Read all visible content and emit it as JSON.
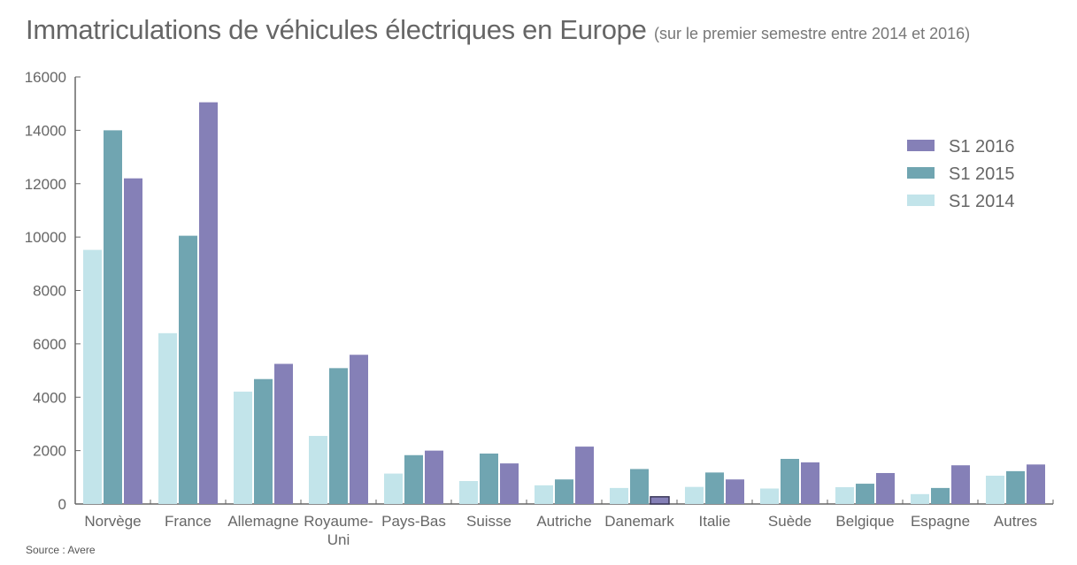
{
  "title": "Immatriculations de véhicules électriques en Europe",
  "subtitle": "(sur le premier semestre entre 2014 et 2016)",
  "source": "Source : Avere",
  "chart_data": {
    "type": "bar",
    "title": "Immatriculations de véhicules électriques en Europe",
    "subtitle": "(sur le premier semestre entre 2014 et 2016)",
    "xlabel": "",
    "ylabel": "",
    "ylim": [
      0,
      16000
    ],
    "yticks": [
      0,
      2000,
      4000,
      6000,
      8000,
      10000,
      12000,
      14000,
      16000
    ],
    "grid": false,
    "legend_position": "top-right",
    "categories": [
      "Norvège",
      "France",
      "Allemagne",
      "Royaume-Uni",
      "Pays-Bas",
      "Suisse",
      "Autriche",
      "Danemark",
      "Italie",
      "Suède",
      "Belgique",
      "Espagne",
      "Autres"
    ],
    "category_labels": [
      [
        "Norvège"
      ],
      [
        "France"
      ],
      [
        "Allemagne"
      ],
      [
        "Royaume-",
        "Uni"
      ],
      [
        "Pays-Bas"
      ],
      [
        "Suisse"
      ],
      [
        "Autriche"
      ],
      [
        "Danemark"
      ],
      [
        "Italie"
      ],
      [
        "Suède"
      ],
      [
        "Belgique"
      ],
      [
        "Espagne"
      ],
      [
        "Autres"
      ]
    ],
    "series": [
      {
        "name": "S1 2014",
        "color": "#c2e4ea",
        "values": [
          9520,
          6400,
          4210,
          2550,
          1140,
          860,
          700,
          600,
          640,
          580,
          630,
          370,
          1060
        ]
      },
      {
        "name": "S1 2015",
        "color": "#70a5b1",
        "values": [
          14000,
          10050,
          4680,
          5090,
          1830,
          1890,
          920,
          1310,
          1180,
          1690,
          760,
          600,
          1230
        ]
      },
      {
        "name": "S1 2016",
        "color": "#8580b7",
        "values": [
          12200,
          15050,
          5250,
          5590,
          2000,
          1520,
          2150,
          270,
          920,
          1560,
          1160,
          1450,
          1480
        ]
      }
    ],
    "legend_order": [
      "S1 2016",
      "S1 2015",
      "S1 2014"
    ],
    "highlighted": {
      "series": "S1 2016",
      "category": "Danemark"
    }
  }
}
